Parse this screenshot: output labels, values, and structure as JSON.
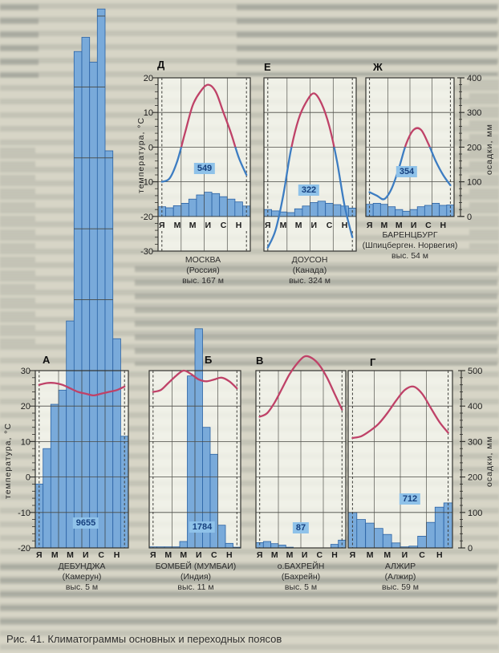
{
  "figure": {
    "caption": "Рис. 41. Климатограммы основных и переходных поясов"
  },
  "axis": {
    "temp_title": "температура, °С",
    "precip_title": "осадки, мм",
    "top_row": {
      "temp_ticks": [
        20,
        10,
        0,
        -10,
        -20,
        -30
      ],
      "precip_ticks": [
        400,
        300,
        200,
        100,
        0
      ],
      "temp_range": [
        -30,
        20
      ],
      "precip_range": [
        0,
        400
      ]
    },
    "bottom_row": {
      "temp_ticks": [
        30,
        20,
        10,
        0,
        -10,
        -20
      ],
      "precip_ticks": [
        500,
        400,
        300,
        200,
        100,
        0
      ],
      "temp_range": [
        -20,
        30
      ],
      "precip_range": [
        0,
        500
      ]
    }
  },
  "month_tick_labels": [
    "Я",
    "М",
    "М",
    "И",
    "С",
    "Н"
  ],
  "chart_data": [
    {
      "letter": "А",
      "type": "bar+line climogram",
      "city": "ДЕБУНДЖА",
      "region": "(Камерун)",
      "elevation": "выс. 5 м",
      "annual_precip_mm": "9655",
      "row": "bottom",
      "temps_c": [
        26,
        26.5,
        26.5,
        26,
        25,
        24,
        23.5,
        23,
        23.5,
        24,
        24.5,
        25.5
      ],
      "precip_mm": [
        180,
        280,
        405,
        445,
        640,
        1400,
        1440,
        1370,
        1520,
        1120,
        590,
        315
      ]
    },
    {
      "letter": "Б",
      "type": "bar+line climogram",
      "city": "БОМБЕЙ (МУМБАИ)",
      "region": "(Индия)",
      "elevation": "выс. 11 м",
      "annual_precip_mm": "1784",
      "row": "bottom",
      "temps_c": [
        24,
        24.5,
        26.5,
        28.5,
        30,
        29,
        27.5,
        27,
        27.5,
        28,
        27,
        25
      ],
      "precip_mm": [
        3,
        3,
        3,
        3,
        18,
        485,
        618,
        340,
        264,
        64,
        13,
        2
      ]
    },
    {
      "letter": "В",
      "type": "bar+line climogram",
      "city": "о.БАХРЕЙН",
      "region": "(Бахрейн)",
      "elevation": "выс. 5 м",
      "annual_precip_mm": "87",
      "row": "bottom",
      "temps_c": [
        17,
        18,
        21,
        25,
        29,
        32,
        34,
        33.5,
        31.5,
        28,
        23.5,
        19
      ],
      "precip_mm": [
        15,
        18,
        12,
        8,
        2,
        0,
        0,
        0,
        0,
        0,
        10,
        22
      ]
    },
    {
      "letter": "Г",
      "type": "bar+line climogram",
      "city": "АЛЖИР",
      "region": "(Алжир)",
      "elevation": "выс. 59 м",
      "annual_precip_mm": "712",
      "row": "bottom",
      "temps_c": [
        11,
        11.5,
        13,
        15,
        18,
        21.5,
        24.5,
        25.5,
        23.5,
        19.5,
        15.5,
        12.5
      ],
      "precip_mm": [
        100,
        80,
        70,
        55,
        38,
        14,
        3,
        5,
        33,
        72,
        115,
        127
      ]
    },
    {
      "letter": "Д",
      "type": "bar+line climogram",
      "city": "МОСКВА",
      "region": "(Россия)",
      "elevation": "выс. 167 м",
      "annual_precip_mm": "549",
      "row": "top",
      "temps_c": [
        -10,
        -9,
        -4,
        4,
        12,
        16,
        18,
        16,
        10,
        4,
        -3,
        -8
      ],
      "precip_mm": [
        28,
        25,
        31,
        38,
        50,
        62,
        70,
        66,
        57,
        50,
        42,
        30
      ]
    },
    {
      "letter": "Е",
      "type": "bar+line climogram",
      "city": "ДОУСОН",
      "region": "(Канада)",
      "elevation": "выс. 324 м",
      "annual_precip_mm": "322",
      "row": "top",
      "temps_c": [
        -29,
        -24,
        -14,
        -1,
        8,
        13,
        15.5,
        12.5,
        6,
        -4,
        -17,
        -26
      ],
      "precip_mm": [
        20,
        16,
        13,
        11,
        22,
        30,
        40,
        44,
        38,
        34,
        30,
        24
      ]
    },
    {
      "letter": "Ж",
      "type": "bar+line climogram",
      "city": "БАРЕНЦБУРГ",
      "region": "(Шпицберген. Норвегия)",
      "elevation": "выс. 54 м",
      "annual_precip_mm": "354",
      "row": "top",
      "temps_c": [
        -13,
        -14,
        -15,
        -12,
        -6,
        1,
        5,
        5,
        1,
        -4,
        -8,
        -11
      ],
      "precip_mm": [
        35,
        38,
        35,
        28,
        20,
        15,
        20,
        28,
        32,
        38,
        32,
        33
      ]
    }
  ],
  "colors": {
    "warm_curve": "#bf4268",
    "cold_curve": "#3d7dc2",
    "bar_fill": "#79aada",
    "bar_stroke": "#2a62a4",
    "chip_bg": "#8fc2e9",
    "chip_text": "#16407e",
    "grid": "#4a4a44",
    "page_bg": "#d7d5c6"
  }
}
